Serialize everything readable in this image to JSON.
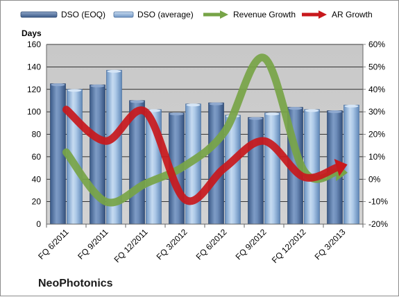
{
  "chart_data": {
    "type": "bar",
    "company": "NeoPhotonics",
    "ylabel_left": "Days",
    "categories": [
      "FQ 6/2011",
      "FQ 9/2011",
      "FQ 12/2011",
      "FQ 3/2012",
      "FQ 6/2012",
      "FQ 9/2012",
      "FQ 12/2012",
      "FQ 3/2013"
    ],
    "ylim_left": [
      0,
      160
    ],
    "yticks_left": [
      0,
      20,
      40,
      60,
      80,
      100,
      120,
      140,
      160
    ],
    "ylim_right": [
      -20,
      60
    ],
    "yticks_right": [
      -20,
      -10,
      0,
      10,
      20,
      30,
      40,
      50,
      60
    ],
    "ytick_right_suffix": "%",
    "grid": true,
    "legend_position": "top",
    "series": [
      {
        "name": "DSO (EOQ)",
        "type": "bar",
        "axis": "left",
        "color": "#4f6f9f",
        "values": [
          125,
          124,
          110,
          99,
          108,
          95,
          104,
          101
        ]
      },
      {
        "name": "DSO (average)",
        "type": "bar",
        "axis": "left",
        "color": "#8fb2da",
        "values": [
          120,
          137,
          102,
          107,
          97,
          99,
          102,
          106
        ]
      },
      {
        "name": "Revenue Growth",
        "type": "line",
        "axis": "right",
        "color": "#77a447",
        "values": [
          12,
          -10,
          -2,
          6,
          21,
          54,
          4,
          3
        ]
      },
      {
        "name": "AR Growth",
        "type": "line",
        "axis": "right",
        "color": "#c8181c",
        "values": [
          31,
          17,
          30,
          -9,
          5,
          17,
          1,
          6
        ]
      }
    ]
  }
}
